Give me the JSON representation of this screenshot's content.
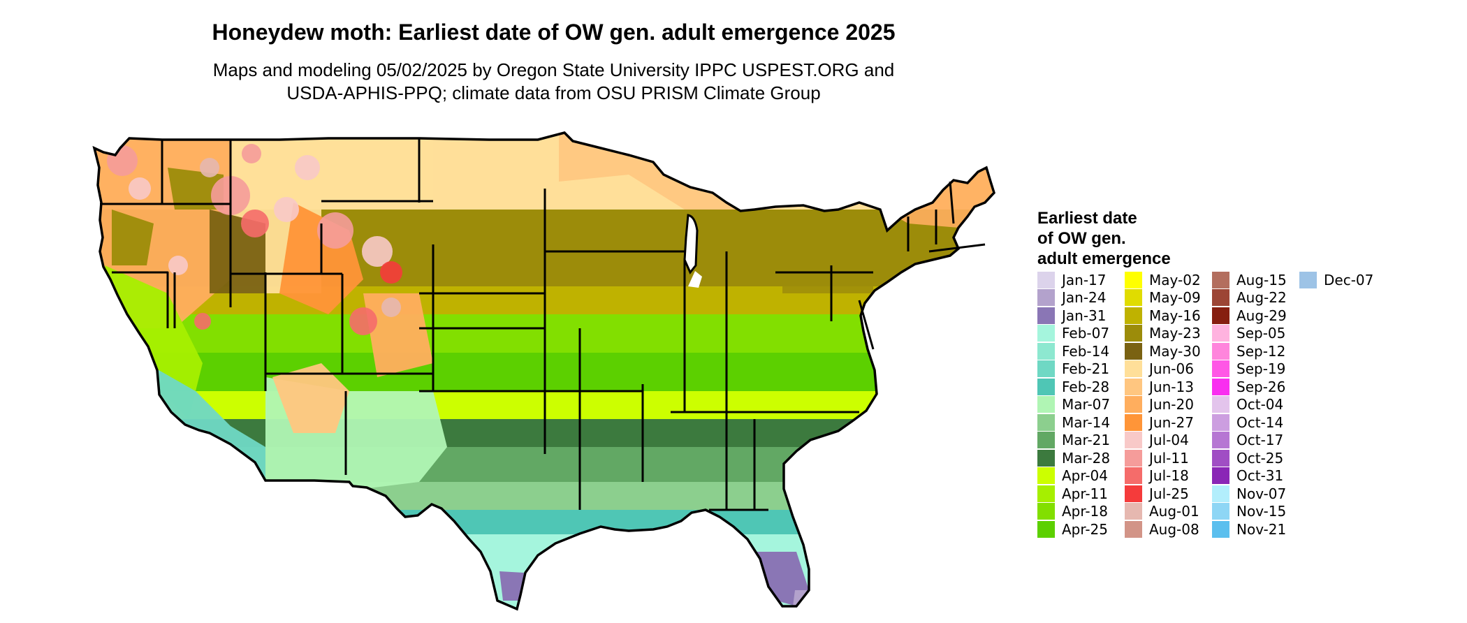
{
  "header": {
    "title": "Honeydew moth: Earliest date of OW gen. adult emergence 2025",
    "subtitle_line1": "Maps and modeling 05/02/2025 by Oregon State University IPPC USPEST.ORG and",
    "subtitle_line2": "USDA-APHIS-PPQ; climate data from OSU PRISM Climate Group"
  },
  "legend": {
    "title_line1": "Earliest date",
    "title_line2": "of OW gen.",
    "title_line3": "adult emergence",
    "columns": [
      [
        {
          "label": "Jan-17",
          "color": "#dcd3eb"
        },
        {
          "label": "Jan-24",
          "color": "#b3a2cc"
        },
        {
          "label": "Jan-31",
          "color": "#8a76b5"
        },
        {
          "label": "Feb-07",
          "color": "#a5f5dd"
        },
        {
          "label": "Feb-14",
          "color": "#8de8d0"
        },
        {
          "label": "Feb-21",
          "color": "#6fd8c4"
        },
        {
          "label": "Feb-28",
          "color": "#4fc6b5"
        },
        {
          "label": "Mar-07",
          "color": "#b0f5b4"
        },
        {
          "label": "Mar-14",
          "color": "#8ccf8e"
        },
        {
          "label": "Mar-21",
          "color": "#62a864"
        },
        {
          "label": "Mar-28",
          "color": "#3c7a3e"
        },
        {
          "label": "Apr-04",
          "color": "#ccff00"
        },
        {
          "label": "Apr-11",
          "color": "#a6ef00"
        },
        {
          "label": "Apr-18",
          "color": "#82df00"
        },
        {
          "label": "Apr-25",
          "color": "#5cd000"
        }
      ],
      [
        {
          "label": "May-02",
          "color": "#ffff00"
        },
        {
          "label": "May-09",
          "color": "#e0dc00"
        },
        {
          "label": "May-16",
          "color": "#bfb200"
        },
        {
          "label": "May-23",
          "color": "#9c8c0a"
        },
        {
          "label": "May-30",
          "color": "#7a6212"
        },
        {
          "label": "Jun-06",
          "color": "#ffdf99"
        },
        {
          "label": "Jun-13",
          "color": "#ffc680"
        },
        {
          "label": "Jun-20",
          "color": "#ffae5e"
        },
        {
          "label": "Jun-27",
          "color": "#ff9538"
        },
        {
          "label": "Jul-04",
          "color": "#f8c9c8"
        },
        {
          "label": "Jul-11",
          "color": "#f59c9a"
        },
        {
          "label": "Jul-18",
          "color": "#f56c6a"
        },
        {
          "label": "Jul-25",
          "color": "#f53b3b"
        },
        {
          "label": "Aug-01",
          "color": "#e6b8b0"
        },
        {
          "label": "Aug-08",
          "color": "#d29487"
        }
      ],
      [
        {
          "label": "Aug-15",
          "color": "#b36e5e"
        },
        {
          "label": "Aug-22",
          "color": "#9c4535"
        },
        {
          "label": "Aug-29",
          "color": "#861e10"
        },
        {
          "label": "Sep-05",
          "color": "#ffb3df"
        },
        {
          "label": "Sep-12",
          "color": "#ff85dc"
        },
        {
          "label": "Sep-19",
          "color": "#ff57e6"
        },
        {
          "label": "Sep-26",
          "color": "#f92ef0"
        },
        {
          "label": "Oct-04",
          "color": "#e3c4ec"
        },
        {
          "label": "Oct-14",
          "color": "#cc9ee0"
        },
        {
          "label": "Oct-17",
          "color": "#b676d3"
        },
        {
          "label": "Oct-25",
          "color": "#a04ec4"
        },
        {
          "label": "Oct-31",
          "color": "#8a26b6"
        },
        {
          "label": "Nov-07",
          "color": "#b2eefc"
        },
        {
          "label": "Nov-15",
          "color": "#8ed6f5"
        },
        {
          "label": "Nov-21",
          "color": "#5bbfee"
        }
      ],
      [
        {
          "label": "Dec-07",
          "color": "#9dc3e6"
        }
      ]
    ]
  }
}
